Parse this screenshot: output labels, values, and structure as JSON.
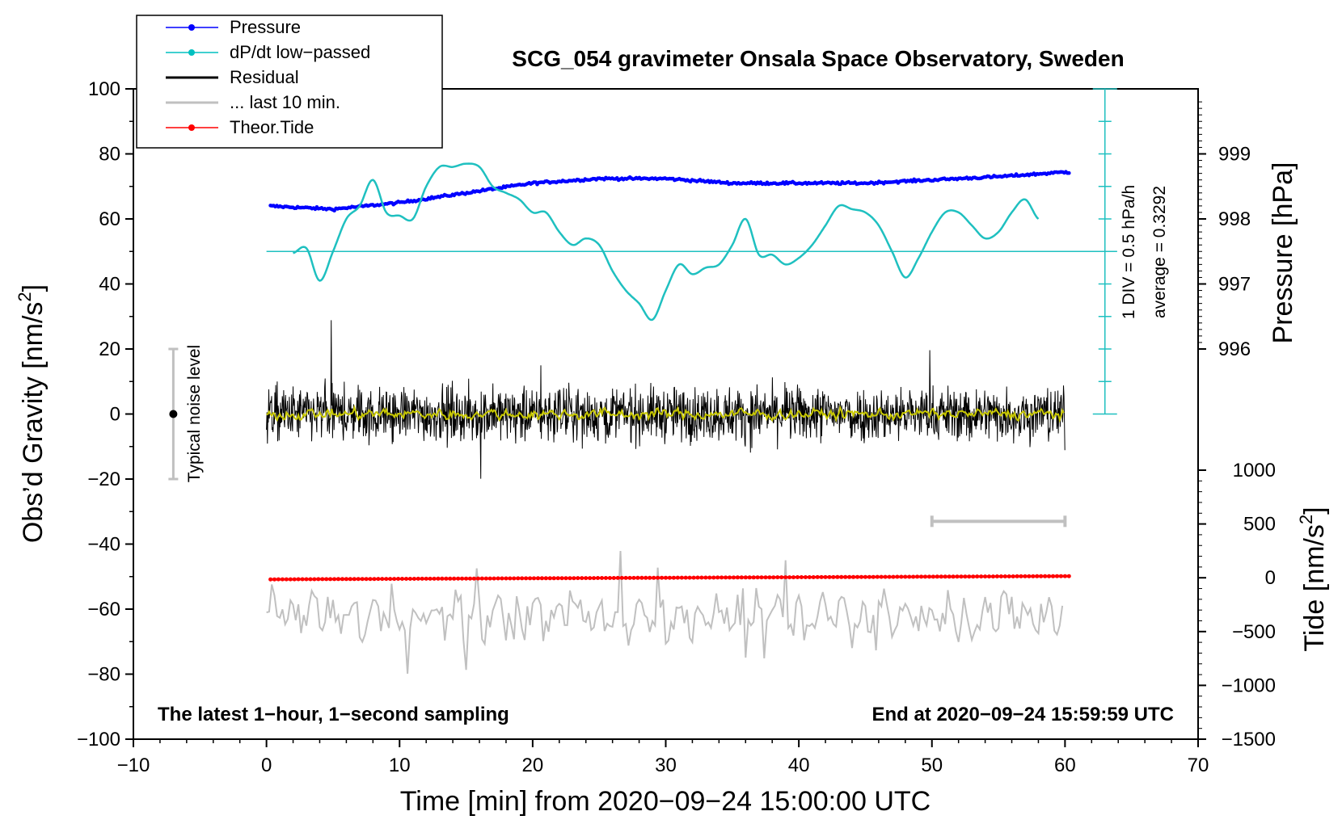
{
  "chart_data": {
    "type": "line",
    "title": "SCG_054 gravimeter Onsala Space Observatory, Sweden",
    "xlabel": "Time [min] from 2020−09−24 15:00:00 UTC",
    "ylabel_left_main": "Obs’d Gravity [nm/s",
    "ylabel_left_sup": "2",
    "ylabel_left_close": "]",
    "ylabel_right_pressure": "Pressure [hPa]",
    "ylabel_right_tide_main": "Tide [nm/s",
    "ylabel_right_tide_sup": "2",
    "ylabel_right_tide_close": "]",
    "xlim": [
      -10,
      70
    ],
    "ylim": [
      -100,
      100
    ],
    "x_ticks": [
      "−10",
      "0",
      "10",
      "20",
      "30",
      "40",
      "50",
      "60",
      "70"
    ],
    "y_ticks": [
      "−100",
      "−80",
      "−60",
      "−40",
      "−20",
      "0",
      "20",
      "40",
      "60",
      "80",
      "100"
    ],
    "pressure_ticks": [
      "996",
      "997",
      "998",
      "999"
    ],
    "tide_ticks": [
      "−1500",
      "−1000",
      "−500",
      "0",
      "500",
      "1000"
    ],
    "legend": [
      {
        "label": "Pressure",
        "color": "#0000ff",
        "marker": true
      },
      {
        "label": "dP/dt low−passed",
        "color": "#00c0c0",
        "marker": true
      },
      {
        "label": "Residual",
        "color": "#000000",
        "marker": false
      },
      {
        "label": "... last 10 min.",
        "color": "#c0c0c0",
        "marker": false
      },
      {
        "label": "Theor.Tide",
        "color": "#ff0000",
        "marker": true
      }
    ],
    "noise_label": "Typical noise level",
    "noise_range": [
      -20,
      20
    ],
    "dpdt_scale_label": "1 DIV = 0.5 hPa/h",
    "dpdt_average_label": "average = 0.3292",
    "footer_left": "The latest 1−hour, 1−second sampling",
    "footer_right": "End at 2020−09−24 15:59:59 UTC",
    "last10_bar_min": [
      50,
      60
    ],
    "series": [
      {
        "name": "Pressure",
        "x": [
          0,
          5,
          10,
          15,
          20,
          25,
          30,
          35,
          40,
          45,
          50,
          55,
          60
        ],
        "values": [
          998.2,
          998.15,
          998.25,
          998.4,
          998.55,
          998.62,
          998.62,
          998.55,
          998.55,
          998.55,
          998.6,
          998.65,
          998.72
        ]
      },
      {
        "name": "dP/dt low−passed",
        "x": [
          2,
          3,
          4,
          5,
          6,
          7,
          8,
          9,
          10,
          11,
          12,
          13,
          14,
          15,
          16,
          17,
          18,
          19,
          20,
          21,
          22,
          23,
          24,
          25,
          26,
          27,
          28,
          29,
          30,
          31,
          32,
          33,
          34,
          35,
          36,
          37,
          38,
          39,
          40,
          41,
          42,
          43,
          44,
          45,
          46,
          47,
          48,
          49,
          50,
          51,
          52,
          53,
          54,
          55,
          56,
          57,
          58
        ],
        "values": [
          49.5,
          51,
          41,
          50,
          60,
          64,
          72,
          62,
          61,
          60,
          70,
          76,
          76,
          77,
          76,
          70,
          68,
          66,
          62,
          62,
          56,
          52,
          54,
          52,
          44,
          38,
          34,
          29,
          38,
          46,
          43,
          45,
          46,
          52,
          60,
          49,
          49,
          46,
          48,
          52,
          58,
          64,
          63,
          62,
          58,
          50,
          42,
          48,
          56,
          62,
          62,
          58,
          54,
          56,
          62,
          66,
          60
        ]
      },
      {
        "name": "Theor.Tide",
        "x": [
          0,
          60
        ],
        "values": [
          -15,
          15
        ]
      }
    ]
  }
}
